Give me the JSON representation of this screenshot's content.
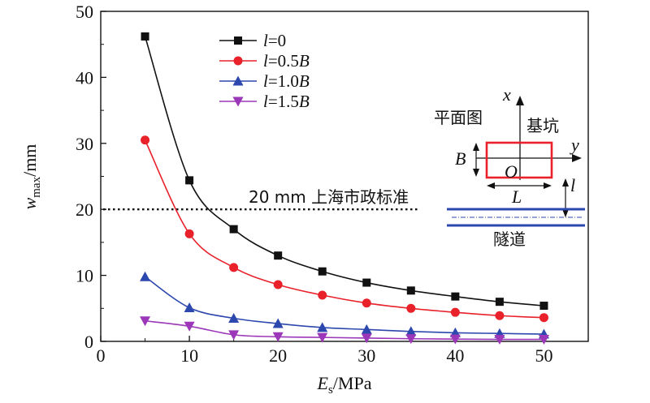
{
  "chart_data": {
    "type": "line",
    "x": [
      5,
      10,
      15,
      20,
      25,
      30,
      35,
      40,
      45,
      50
    ],
    "xlim": [
      0,
      55
    ],
    "ylim": [
      0,
      50
    ],
    "xticks": [
      0,
      10,
      20,
      30,
      40,
      50
    ],
    "yticks": [
      0,
      10,
      20,
      30,
      40,
      50
    ],
    "xlabel_main": "E",
    "xlabel_sub": "s",
    "xlabel_unit": "/MPa",
    "ylabel_main": "w",
    "ylabel_sub": "max",
    "ylabel_unit": "/mm",
    "grid": false,
    "legend_position": "top-left",
    "series": [
      {
        "name": "l=0",
        "name_pre": "l",
        "name_eq": "=0",
        "name_var": "",
        "marker": "square",
        "color": "#111111",
        "values": [
          46.2,
          24.4,
          17.0,
          13.0,
          10.6,
          8.9,
          7.7,
          6.8,
          6.0,
          5.4
        ]
      },
      {
        "name": "l=0.5B",
        "name_pre": "l",
        "name_eq": "=0.5",
        "name_var": "B",
        "marker": "circle",
        "color": "#e8212b",
        "values": [
          30.5,
          16.3,
          11.2,
          8.6,
          7.0,
          5.8,
          5.0,
          4.4,
          3.9,
          3.6
        ]
      },
      {
        "name": "l=1.0B",
        "name_pre": "l",
        "name_eq": "=1.0",
        "name_var": "B",
        "marker": "triangle-up",
        "color": "#2c47ad",
        "values": [
          9.8,
          5.1,
          3.5,
          2.7,
          2.1,
          1.8,
          1.5,
          1.3,
          1.2,
          1.1
        ]
      },
      {
        "name": "l=1.5B",
        "name_pre": "l",
        "name_eq": "=1.5",
        "name_var": "B",
        "marker": "triangle-down",
        "color": "#9b37b8",
        "values": [
          3.1,
          2.3,
          1.0,
          0.7,
          0.6,
          0.5,
          0.4,
          0.35,
          0.3,
          0.3
        ]
      }
    ],
    "reference_line": {
      "y": 20,
      "x_range": [
        0,
        36
      ],
      "label": "20 mm 上海市政标准"
    }
  },
  "inset": {
    "plan_label": "平面图",
    "pit_label": "基坑",
    "tunnel_label": "隧道",
    "x_axis": "x",
    "y_axis": "y",
    "origin": "O",
    "width_label": "B",
    "length_label": "L",
    "distance_label": "l",
    "pit_color": "#e8212b",
    "tunnel_color": "#2c47ad"
  }
}
